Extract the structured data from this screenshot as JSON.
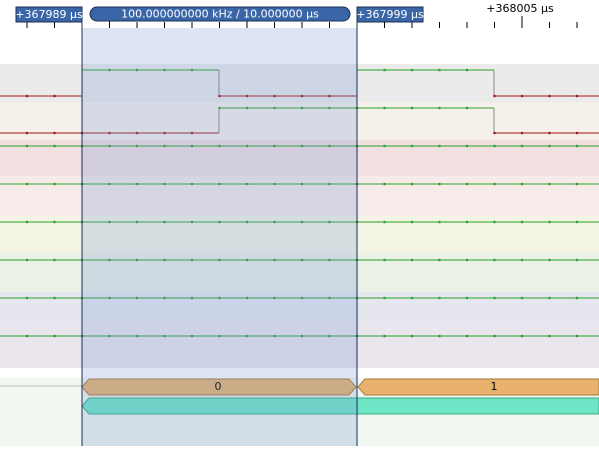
{
  "ruler": {
    "tick_label": "+368005 µs"
  },
  "markers": {
    "left": "+367989 µs",
    "span": "100.000000000 kHz / 10.000000 µs",
    "right": "+367999 µs"
  },
  "decoder": {
    "annotations": [
      "0",
      "1"
    ]
  }
}
